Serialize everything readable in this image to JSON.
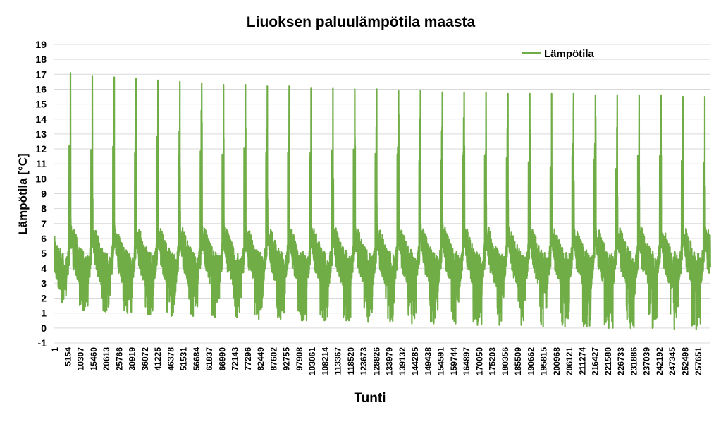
{
  "chart_data": {
    "type": "line",
    "title": "Liuoksen paluulämpötila maasta",
    "xlabel": "Tunti",
    "ylabel": "Lämpötila [°C]",
    "ylim": [
      -1,
      19
    ],
    "yticks": [
      -1,
      0,
      1,
      2,
      3,
      4,
      5,
      6,
      7,
      8,
      9,
      10,
      11,
      12,
      13,
      14,
      15,
      16,
      17,
      18,
      19
    ],
    "xlim": [
      1,
      262800
    ],
    "categories": [
      "1",
      "5154",
      "10307",
      "15460",
      "20613",
      "25766",
      "30919",
      "36072",
      "41225",
      "46378",
      "51531",
      "56684",
      "61837",
      "66990",
      "72143",
      "77296",
      "82449",
      "87602",
      "92755",
      "97908",
      "103061",
      "108214",
      "113367",
      "118520",
      "123673",
      "128826",
      "133979",
      "139132",
      "144285",
      "149438",
      "154591",
      "159744",
      "164897",
      "170050",
      "175203",
      "180356",
      "185509",
      "190662",
      "195815",
      "200968",
      "206121",
      "211274",
      "216427",
      "221580",
      "226733",
      "231886",
      "237039",
      "242192",
      "247345",
      "252498",
      "257651"
    ],
    "grid": true,
    "legend_position": "top-right",
    "color": "#70ad47",
    "series": [
      {
        "name": "Lämpötila",
        "annual_peaks": [
          17.1,
          16.9,
          16.8,
          16.7,
          16.6,
          16.5,
          16.4,
          16.3,
          16.3,
          16.2,
          16.2,
          16.1,
          16.1,
          16.0,
          16.0,
          15.9,
          15.9,
          15.8,
          15.8,
          15.8,
          15.7,
          15.7,
          15.7,
          15.7,
          15.6,
          15.6,
          15.6,
          15.6,
          15.5,
          15.5
        ],
        "annual_minimums": [
          1.7,
          1.2,
          1.1,
          1.0,
          0.9,
          0.8,
          0.8,
          0.7,
          0.7,
          0.6,
          0.6,
          0.5,
          0.5,
          0.5,
          0.4,
          0.4,
          0.3,
          0.3,
          0.3,
          0.2,
          0.2,
          0.2,
          0.1,
          0.1,
          0.1,
          0.0,
          0.0,
          0.0,
          -0.1,
          -0.1
        ]
      }
    ]
  }
}
